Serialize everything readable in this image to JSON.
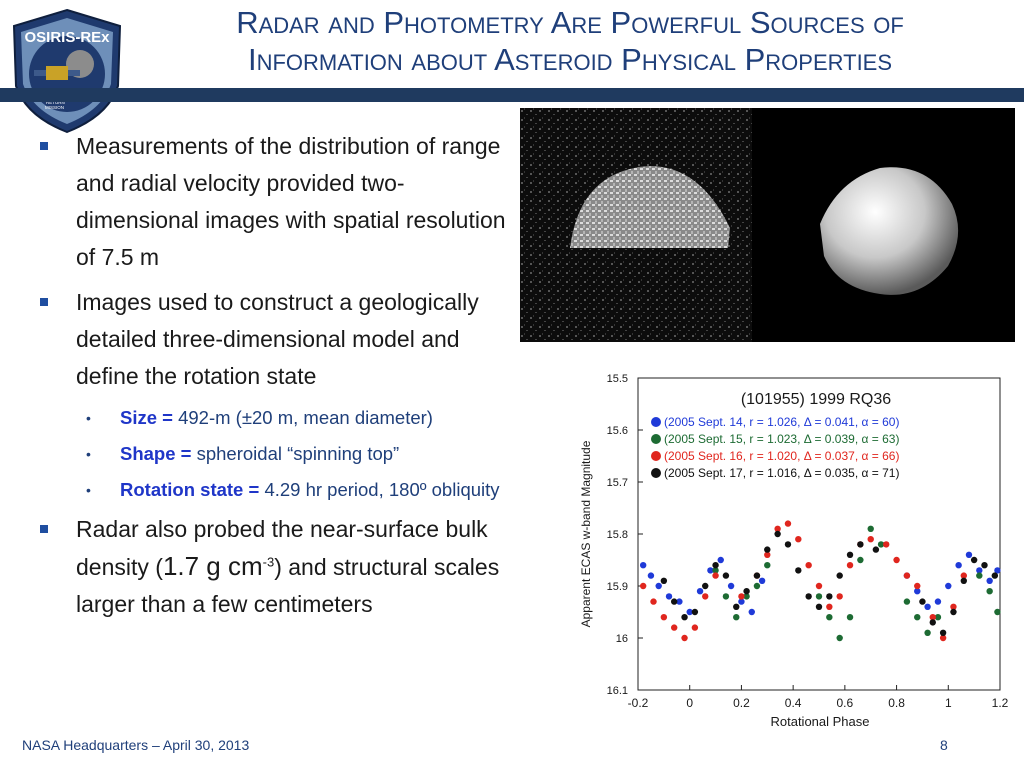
{
  "logo": {
    "name": "OSIRIS-REx",
    "sub_lines": [
      "ASTEROID",
      "SAMPLE",
      "RETURN",
      "MISSION"
    ],
    "colors": {
      "ring": "#1f3a6e",
      "inner": "#6e8fb9"
    }
  },
  "title": {
    "line1": "Radar and Photometry Are Powerful Sources of",
    "line2": "Information about Asteroid Physical Properties"
  },
  "bullets": [
    {
      "text": "Measurements of the distribution of range and radial velocity provided two-dimensional images with spatial resolution of 7.5 m"
    },
    {
      "text": "Images used to construct a geologically detailed three-dimensional model and define the rotation state",
      "sub": [
        {
          "label": "Size =",
          "value": "492-m (±20 m, mean diameter)"
        },
        {
          "label": "Shape =",
          "value": "spheroidal “spinning top”"
        },
        {
          "label": "Rotation state =",
          "value": "4.29 hr period, 180º obliquity"
        }
      ]
    },
    {
      "text_a": "Radar also probed the near-surface bulk density (",
      "density": "1.7 g cm",
      "exp": "-3",
      "text_b": ") and structural scales larger than a few centimeters"
    }
  ],
  "chart_data": {
    "type": "scatter",
    "title": "(101955) 1999 RQ36",
    "xlabel": "Rotational Phase",
    "ylabel": "Apparent ECAS w-band Magnitude",
    "xlim": [
      -0.2,
      1.2
    ],
    "ylim": [
      16.1,
      15.5
    ],
    "y_inverted": true,
    "xticks": [
      "-0.2",
      "0",
      "0.2",
      "0.4",
      "0.6",
      "0.8",
      "1",
      "1.2"
    ],
    "yticks": [
      "15.5",
      "15.6",
      "15.7",
      "15.8",
      "15.9",
      "16",
      "16.1"
    ],
    "legend_position": "top",
    "series": [
      {
        "name": "(2005 Sept. 14, r = 1.026, Δ = 0.041, α = 60)",
        "color": "#1f3ad8",
        "points": [
          [
            -0.18,
            15.86
          ],
          [
            -0.15,
            15.88
          ],
          [
            -0.12,
            15.9
          ],
          [
            -0.08,
            15.92
          ],
          [
            -0.04,
            15.93
          ],
          [
            0.0,
            15.95
          ],
          [
            0.04,
            15.91
          ],
          [
            0.08,
            15.87
          ],
          [
            0.12,
            15.85
          ],
          [
            0.16,
            15.9
          ],
          [
            0.2,
            15.93
          ],
          [
            0.24,
            15.95
          ],
          [
            0.28,
            15.89
          ],
          [
            0.84,
            15.88
          ],
          [
            0.88,
            15.91
          ],
          [
            0.92,
            15.94
          ],
          [
            0.96,
            15.93
          ],
          [
            1.0,
            15.9
          ],
          [
            1.04,
            15.86
          ],
          [
            1.08,
            15.84
          ],
          [
            1.12,
            15.87
          ],
          [
            1.16,
            15.89
          ],
          [
            1.19,
            15.87
          ]
        ]
      },
      {
        "name": "(2005 Sept. 15, r = 1.023, Δ = 0.039, α = 63)",
        "color": "#1d6b33",
        "points": [
          [
            0.1,
            15.87
          ],
          [
            0.14,
            15.92
          ],
          [
            0.18,
            15.96
          ],
          [
            0.22,
            15.92
          ],
          [
            0.26,
            15.9
          ],
          [
            0.3,
            15.86
          ],
          [
            0.5,
            15.92
          ],
          [
            0.54,
            15.96
          ],
          [
            0.58,
            16.0
          ],
          [
            0.62,
            15.96
          ],
          [
            0.66,
            15.85
          ],
          [
            0.7,
            15.79
          ],
          [
            0.74,
            15.82
          ],
          [
            0.84,
            15.93
          ],
          [
            0.88,
            15.96
          ],
          [
            0.92,
            15.99
          ],
          [
            0.96,
            15.96
          ],
          [
            1.12,
            15.88
          ],
          [
            1.16,
            15.91
          ],
          [
            1.19,
            15.95
          ]
        ]
      },
      {
        "name": "(2005 Sept. 16, r = 1.020, Δ = 0.037, α = 66)",
        "color": "#e0261e",
        "points": [
          [
            -0.18,
            15.9
          ],
          [
            -0.14,
            15.93
          ],
          [
            -0.1,
            15.96
          ],
          [
            -0.06,
            15.98
          ],
          [
            -0.02,
            16.0
          ],
          [
            0.02,
            15.98
          ],
          [
            0.06,
            15.92
          ],
          [
            0.1,
            15.88
          ],
          [
            0.2,
            15.92
          ],
          [
            0.26,
            15.88
          ],
          [
            0.3,
            15.84
          ],
          [
            0.34,
            15.79
          ],
          [
            0.38,
            15.78
          ],
          [
            0.42,
            15.81
          ],
          [
            0.46,
            15.86
          ],
          [
            0.5,
            15.9
          ],
          [
            0.54,
            15.94
          ],
          [
            0.58,
            15.92
          ],
          [
            0.62,
            15.86
          ],
          [
            0.66,
            15.82
          ],
          [
            0.7,
            15.81
          ],
          [
            0.76,
            15.82
          ],
          [
            0.8,
            15.85
          ],
          [
            0.84,
            15.88
          ],
          [
            0.88,
            15.9
          ],
          [
            0.94,
            15.96
          ],
          [
            0.98,
            16.0
          ],
          [
            1.02,
            15.94
          ],
          [
            1.06,
            15.88
          ]
        ]
      },
      {
        "name": "(2005 Sept. 17, r = 1.016, Δ = 0.035, α = 71)",
        "color": "#111111",
        "points": [
          [
            -0.1,
            15.89
          ],
          [
            -0.06,
            15.93
          ],
          [
            -0.02,
            15.96
          ],
          [
            0.02,
            15.95
          ],
          [
            0.06,
            15.9
          ],
          [
            0.1,
            15.86
          ],
          [
            0.14,
            15.88
          ],
          [
            0.18,
            15.94
          ],
          [
            0.22,
            15.91
          ],
          [
            0.26,
            15.88
          ],
          [
            0.3,
            15.83
          ],
          [
            0.34,
            15.8
          ],
          [
            0.38,
            15.82
          ],
          [
            0.42,
            15.87
          ],
          [
            0.46,
            15.92
          ],
          [
            0.5,
            15.94
          ],
          [
            0.54,
            15.92
          ],
          [
            0.58,
            15.88
          ],
          [
            0.62,
            15.84
          ],
          [
            0.66,
            15.82
          ],
          [
            0.72,
            15.83
          ],
          [
            0.9,
            15.93
          ],
          [
            0.94,
            15.97
          ],
          [
            0.98,
            15.99
          ],
          [
            1.02,
            15.95
          ],
          [
            1.06,
            15.89
          ],
          [
            1.1,
            15.85
          ],
          [
            1.14,
            15.86
          ],
          [
            1.18,
            15.88
          ]
        ]
      }
    ]
  },
  "footer": {
    "left": "NASA Headquarters – April 30, 2013",
    "page": "8"
  }
}
